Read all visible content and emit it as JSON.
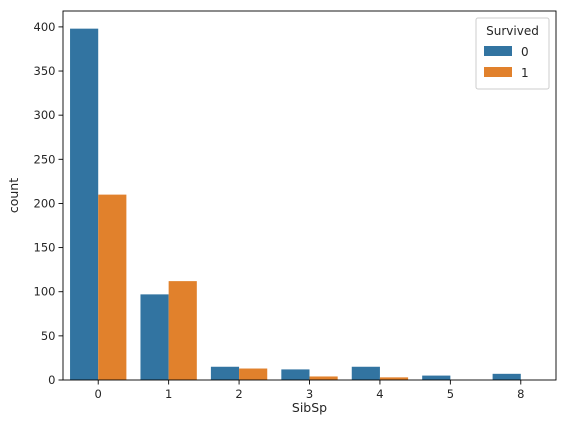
{
  "chart_data": {
    "type": "bar",
    "xlabel": "SibSp",
    "ylabel": "count",
    "categories": [
      "0",
      "1",
      "2",
      "3",
      "4",
      "5",
      "8"
    ],
    "series": [
      {
        "name": "0",
        "color": "#3274a1",
        "values": [
          398,
          97,
          15,
          12,
          15,
          5,
          7
        ]
      },
      {
        "name": "1",
        "color": "#e1812c",
        "values": [
          210,
          112,
          13,
          4,
          3,
          0,
          0
        ]
      }
    ],
    "ylim": [
      0,
      418
    ],
    "yticks": [
      0,
      50,
      100,
      150,
      200,
      250,
      300,
      350,
      400
    ],
    "legend": {
      "title": "Survived",
      "placement": "top-right"
    },
    "grid": false
  }
}
